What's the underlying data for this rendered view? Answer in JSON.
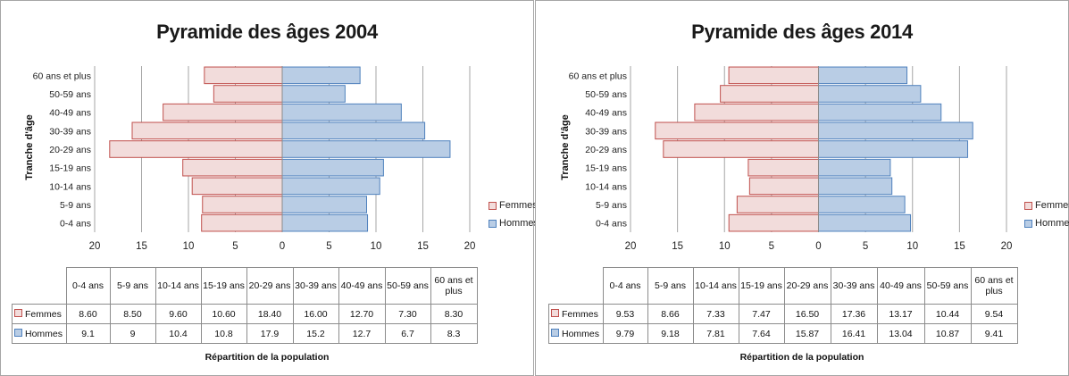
{
  "chart_data": [
    {
      "type": "bar",
      "orientation": "horizontal-pyramid",
      "title": "Pyramide des âges 2004",
      "ylabel": "Tranche d'âge",
      "xlabel": "Répartition de la population",
      "xlim": [
        -20,
        20
      ],
      "xticks": [
        "20",
        "15",
        "10",
        "5",
        "0",
        "5",
        "10",
        "15",
        "20"
      ],
      "categories": [
        "0-4 ans",
        "5-9 ans",
        "10-14 ans",
        "15-19 ans",
        "20-29 ans",
        "30-39 ans",
        "40-49 ans",
        "50-59 ans",
        "60 ans et plus"
      ],
      "series": [
        {
          "name": "Femmes",
          "values": [
            8.6,
            8.5,
            9.6,
            10.6,
            18.4,
            16.0,
            12.7,
            7.3,
            8.3
          ],
          "labels": [
            "8.60",
            "8.50",
            "9.60",
            "10.60",
            "18.40",
            "16.00",
            "12.70",
            "7.30",
            "8.30"
          ]
        },
        {
          "name": "Hommes",
          "values": [
            9.1,
            9,
            10.4,
            10.8,
            17.9,
            15.2,
            12.7,
            6.7,
            8.3
          ],
          "labels": [
            "9.1",
            "9",
            "10.4",
            "10.8",
            "17.9",
            "15.2",
            "12.7",
            "6.7",
            "8.3"
          ]
        }
      ],
      "grid": true,
      "legend": "right"
    },
    {
      "type": "bar",
      "orientation": "horizontal-pyramid",
      "title": "Pyramide des âges 2014",
      "ylabel": "Tranche d'âge",
      "xlabel": "Répartition de la population",
      "xlim": [
        -20,
        20
      ],
      "xticks": [
        "20",
        "15",
        "10",
        "5",
        "0",
        "5",
        "10",
        "15",
        "20"
      ],
      "categories": [
        "0-4 ans",
        "5-9 ans",
        "10-14 ans",
        "15-19 ans",
        "20-29 ans",
        "30-39 ans",
        "40-49 ans",
        "50-59 ans",
        "60 ans et plus"
      ],
      "series": [
        {
          "name": "Femmes",
          "values": [
            9.53,
            8.66,
            7.33,
            7.47,
            16.5,
            17.36,
            13.17,
            10.44,
            9.54
          ],
          "labels": [
            "9.53",
            "8.66",
            "7.33",
            "7.47",
            "16.50",
            "17.36",
            "13.17",
            "10.44",
            "9.54"
          ]
        },
        {
          "name": "Hommes",
          "values": [
            9.79,
            9.18,
            7.81,
            7.64,
            15.87,
            16.41,
            13.04,
            10.87,
            9.41
          ],
          "labels": [
            "9.79",
            "9.18",
            "7.81",
            "7.64",
            "15.87",
            "16.41",
            "13.04",
            "10.87",
            "9.41"
          ]
        }
      ],
      "grid": true,
      "legend": "right"
    }
  ],
  "table_header_last": [
    "60 ans et",
    "plus"
  ],
  "colors": {
    "femmes_fill": "#f2dcdb",
    "femmes_stroke": "#c0504d",
    "hommes_fill": "#b9cde5",
    "hommes_stroke": "#4f81bd",
    "grid": "#a6a6a6"
  }
}
